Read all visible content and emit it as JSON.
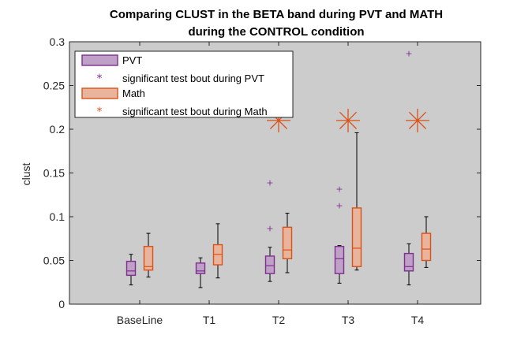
{
  "chart_data": {
    "type": "boxplot",
    "title_lines": [
      "Comparing CLUST in the BETA band during PVT and MATH",
      "during the CONTROL condition"
    ],
    "xlabel": "",
    "ylabel": "clust",
    "ylim": [
      0,
      0.3
    ],
    "yticks": [
      0,
      0.05,
      0.1,
      0.15,
      0.2,
      0.25,
      0.3
    ],
    "ytick_labels": [
      "0",
      "0.05",
      "0.1",
      "0.15",
      "0.2",
      "0.25",
      "0.3"
    ],
    "categories": [
      "BaseLine",
      "T1",
      "T2",
      "T3",
      "T4"
    ],
    "legend_position": "top-left",
    "background_color": "#cccccc",
    "series": [
      {
        "name": "PVT",
        "color": "#7e2f8e",
        "fill": "#bfa0c6",
        "boxes": [
          {
            "whisker_low": 0.022,
            "q1": 0.033,
            "median": 0.038,
            "q3": 0.049,
            "whisker_high": 0.057,
            "outliers": []
          },
          {
            "whisker_low": 0.019,
            "q1": 0.035,
            "median": 0.038,
            "q3": 0.047,
            "whisker_high": 0.053,
            "outliers": []
          },
          {
            "whisker_low": 0.026,
            "q1": 0.035,
            "median": 0.044,
            "q3": 0.055,
            "whisker_high": 0.065,
            "outliers": [
              0.087,
              0.139
            ]
          },
          {
            "whisker_low": 0.024,
            "q1": 0.035,
            "median": 0.052,
            "q3": 0.066,
            "whisker_high": 0.067,
            "outliers": [
              0.113,
              0.132
            ]
          },
          {
            "whisker_low": 0.022,
            "q1": 0.038,
            "median": 0.043,
            "q3": 0.058,
            "whisker_high": 0.069,
            "outliers": [
              0.287
            ]
          }
        ],
        "significant_label": "significant test bout during PVT",
        "significant_marks": []
      },
      {
        "name": "Math",
        "color": "#d95319",
        "fill": "#e8b49c",
        "boxes": [
          {
            "whisker_low": 0.031,
            "q1": 0.039,
            "median": 0.043,
            "q3": 0.066,
            "whisker_high": 0.081,
            "outliers": []
          },
          {
            "whisker_low": 0.03,
            "q1": 0.045,
            "median": 0.057,
            "q3": 0.068,
            "whisker_high": 0.092,
            "outliers": []
          },
          {
            "whisker_low": 0.036,
            "q1": 0.052,
            "median": 0.062,
            "q3": 0.088,
            "whisker_high": 0.104,
            "outliers": []
          },
          {
            "whisker_low": 0.039,
            "q1": 0.043,
            "median": 0.064,
            "q3": 0.11,
            "whisker_high": 0.196,
            "outliers": []
          },
          {
            "whisker_low": 0.042,
            "q1": 0.05,
            "median": 0.063,
            "q3": 0.081,
            "whisker_high": 0.1,
            "outliers": []
          }
        ],
        "significant_label": "significant test bout during Math",
        "significant_marks": [
          {
            "category": "T2",
            "y": 0.21
          },
          {
            "category": "T3",
            "y": 0.21
          },
          {
            "category": "T4",
            "y": 0.21
          }
        ]
      }
    ]
  }
}
